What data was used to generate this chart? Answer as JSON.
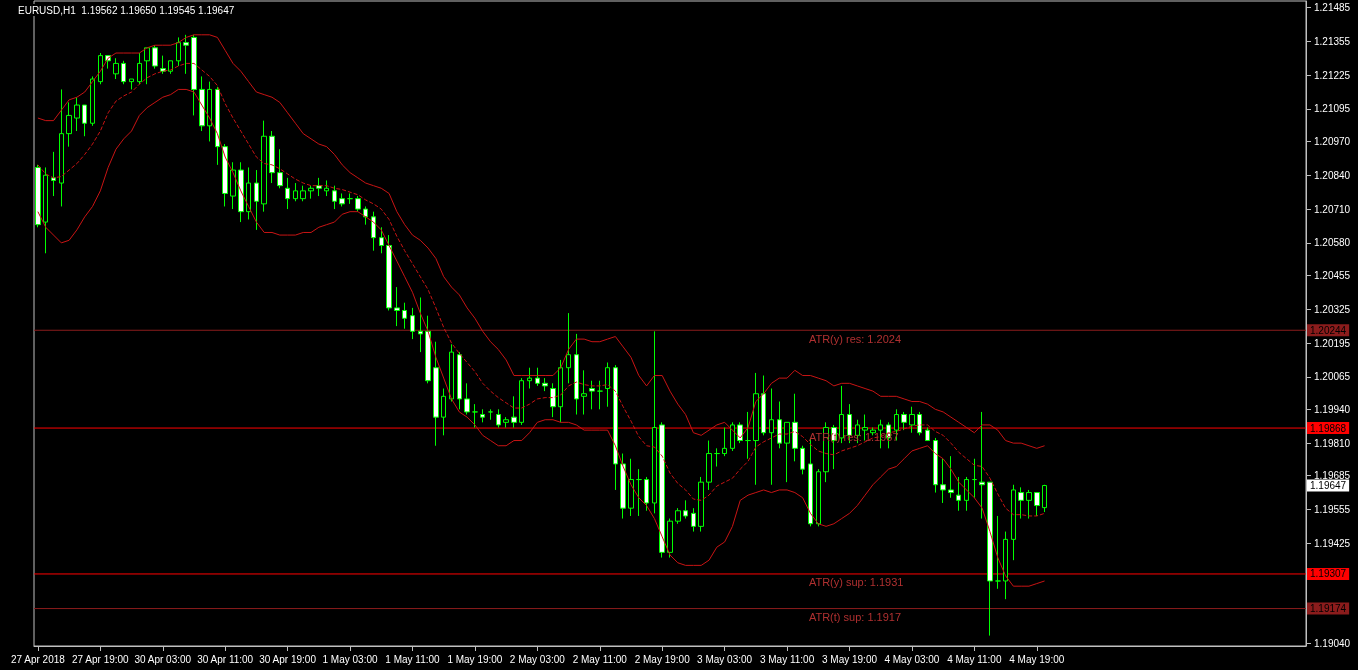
{
  "chart_data": {
    "type": "candlestick",
    "title": "EURUSD,H1  1.19562 1.19650 1.19545 1.19647",
    "color": "#00ff00",
    "categories": [
      "27 Apr 2018",
      null,
      null,
      null,
      null,
      null,
      null,
      null,
      "27 Apr 19:00",
      null,
      null,
      null,
      null,
      null,
      null,
      null,
      "30 Apr 03:00",
      null,
      null,
      null,
      null,
      null,
      null,
      null,
      "30 Apr 11:00",
      null,
      null,
      null,
      null,
      null,
      null,
      null,
      "30 Apr 19:00",
      null,
      null,
      null,
      null,
      null,
      null,
      null,
      "1 May 03:00",
      null,
      null,
      null,
      null,
      null,
      null,
      null,
      "1 May 11:00",
      null,
      null,
      null,
      null,
      null,
      null,
      null,
      "1 May 19:00",
      null,
      null,
      null,
      null,
      null,
      null,
      null,
      "2 May 03:00",
      null,
      null,
      null,
      null,
      null,
      null,
      null,
      "2 May 11:00",
      null,
      null,
      null,
      null,
      null,
      null,
      null,
      "2 May 19:00",
      null,
      null,
      null,
      null,
      null,
      null,
      null,
      "3 May 03:00",
      null,
      null,
      null,
      null,
      null,
      null,
      null,
      "3 May 11:00",
      null,
      null,
      null,
      null,
      null,
      null,
      null,
      "3 May 19:00",
      null,
      null,
      null,
      null,
      null,
      null,
      null,
      "4 May 03:00",
      null,
      null,
      null,
      null,
      null,
      null,
      null,
      "4 May 11:00",
      null,
      null,
      null,
      null,
      null,
      null,
      null,
      "4 May 19:00",
      null
    ],
    "ohlc": [
      [
        1.2087,
        1.2088,
        1.2064,
        1.2065
      ],
      [
        1.2066,
        1.2087,
        1.2054,
        1.2084
      ],
      [
        1.2083,
        1.2093,
        1.2076,
        1.2082
      ],
      [
        1.2081,
        1.2117,
        1.2072,
        1.21
      ],
      [
        1.21,
        1.2112,
        1.2095,
        1.2107
      ],
      [
        1.2106,
        1.2114,
        1.2101,
        1.2111
      ],
      [
        1.2111,
        1.2111,
        1.2099,
        1.2104
      ],
      [
        1.2104,
        1.2122,
        1.2103,
        1.2121
      ],
      [
        1.212,
        1.2131,
        1.2119,
        1.213
      ],
      [
        1.213,
        1.213,
        1.2125,
        1.2128
      ],
      [
        1.2123,
        1.2129,
        1.2121,
        1.2127
      ],
      [
        1.2127,
        1.2128,
        1.2119,
        1.212
      ],
      [
        1.212,
        1.2121,
        1.2117,
        1.2121
      ],
      [
        1.212,
        1.2131,
        1.2119,
        1.2127
      ],
      [
        1.2128,
        1.2133,
        1.2119,
        1.2133
      ],
      [
        1.2133,
        1.2134,
        1.2125,
        1.2126
      ],
      [
        1.2125,
        1.213,
        1.2123,
        1.2124
      ],
      [
        1.2124,
        1.2128,
        1.2123,
        1.2128
      ],
      [
        1.2128,
        1.2137,
        1.2126,
        1.2135
      ],
      [
        1.2135,
        1.2138,
        1.2123,
        1.2134
      ],
      [
        1.2137,
        1.2138,
        1.2107,
        1.2117
      ],
      [
        1.2117,
        1.2122,
        1.2101,
        1.2103
      ],
      [
        1.2103,
        1.212,
        1.2097,
        1.2117
      ],
      [
        1.2117,
        1.2118,
        1.2088,
        1.2095
      ],
      [
        1.2095,
        1.2096,
        1.2072,
        1.2077
      ],
      [
        1.2076,
        1.2089,
        1.2071,
        1.2086
      ],
      [
        1.2086,
        1.2089,
        1.2066,
        1.207
      ],
      [
        1.207,
        1.2087,
        1.2067,
        1.2081
      ],
      [
        1.2081,
        1.2086,
        1.2063,
        1.2074
      ],
      [
        1.2073,
        1.2105,
        1.207,
        1.2099
      ],
      [
        1.2099,
        1.2101,
        1.2081,
        1.2085
      ],
      [
        1.2085,
        1.2094,
        1.2079,
        1.208
      ],
      [
        1.2079,
        1.2083,
        1.2071,
        1.2075
      ],
      [
        1.2075,
        1.2081,
        1.2074,
        1.2078
      ],
      [
        1.2075,
        1.208,
        1.2074,
        1.2078
      ],
      [
        1.2078,
        1.208,
        1.2075,
        1.2079
      ],
      [
        1.208,
        1.2083,
        1.2076,
        1.2079
      ],
      [
        1.2078,
        1.2082,
        1.2076,
        1.2079
      ],
      [
        1.2078,
        1.208,
        1.2071,
        1.2074
      ],
      [
        1.2075,
        1.2077,
        1.2072,
        1.2073
      ],
      [
        1.2075,
        1.2077,
        1.2073,
        1.2075
      ],
      [
        1.2075,
        1.2076,
        1.207,
        1.2071
      ],
      [
        1.2071,
        1.2072,
        1.2065,
        1.2068
      ],
      [
        1.2068,
        1.207,
        1.2055,
        1.206
      ],
      [
        1.206,
        1.2064,
        1.2054,
        1.2057
      ],
      [
        1.2057,
        1.2061,
        1.2032,
        1.2033
      ],
      [
        1.2033,
        1.2041,
        1.2026,
        1.2032
      ],
      [
        1.2032,
        1.2035,
        1.2025,
        1.2029
      ],
      [
        1.203,
        1.2033,
        1.2021,
        1.2024
      ],
      [
        1.2024,
        1.2037,
        1.2016,
        1.2023
      ],
      [
        1.2024,
        1.203,
        1.2004,
        1.2005
      ],
      [
        1.201,
        1.202,
        1.198,
        1.1991
      ],
      [
        1.1991,
        1.2002,
        1.1984,
        1.1999
      ],
      [
        1.1998,
        1.2019,
        1.1997,
        1.2016
      ],
      [
        1.2015,
        1.2016,
        1.1994,
        1.1998
      ],
      [
        1.1998,
        1.2004,
        1.1992,
        1.1993
      ],
      [
        1.1993,
        1.1996,
        1.1987,
        1.1993
      ],
      [
        1.1992,
        1.1994,
        1.1989,
        1.1991
      ],
      [
        1.1993,
        1.1994,
        1.199,
        1.1993
      ],
      [
        1.1992,
        1.1994,
        1.1987,
        1.1988
      ],
      [
        1.1989,
        1.1991,
        1.1987,
        1.199
      ],
      [
        1.1991,
        1.1999,
        1.1987,
        1.1989
      ],
      [
        1.1989,
        1.2006,
        1.1988,
        1.2005
      ],
      [
        1.2005,
        1.201,
        1.2002,
        1.2006
      ],
      [
        1.2006,
        1.201,
        1.2003,
        1.2004
      ],
      [
        1.2004,
        1.2006,
        1.2001,
        1.2003
      ],
      [
        1.2002,
        1.2004,
        1.1991,
        1.1995
      ],
      [
        1.1995,
        1.2013,
        1.1989,
        1.201
      ],
      [
        1.201,
        1.2031,
        1.2004,
        1.2015
      ],
      [
        1.2015,
        1.2023,
        1.1992,
        1.1998
      ],
      [
        1.1999,
        1.2009,
        1.1992,
        1.2
      ],
      [
        1.2002,
        1.2005,
        1.1994,
        1.2001
      ],
      [
        1.2001,
        1.2005,
        1.1994,
        1.2001
      ],
      [
        1.2002,
        1.2012,
        1.1995,
        1.201
      ],
      [
        1.201,
        1.2011,
        1.1963,
        1.1973
      ],
      [
        1.1973,
        1.1977,
        1.1952,
        1.1956
      ],
      [
        1.1956,
        1.1975,
        1.1953,
        1.1967
      ],
      [
        1.1967,
        1.1971,
        1.1953,
        1.1967
      ],
      [
        1.1967,
        1.1968,
        1.1955,
        1.1958
      ],
      [
        1.1958,
        1.2024,
        1.1954,
        1.1987
      ],
      [
        1.1988,
        1.1989,
        1.1937,
        1.1939
      ],
      [
        1.1939,
        1.1952,
        1.1937,
        1.1951
      ],
      [
        1.1951,
        1.1956,
        1.195,
        1.1955
      ],
      [
        1.1955,
        1.1959,
        1.1952,
        1.1953
      ],
      [
        1.1954,
        1.1956,
        1.1947,
        1.1949
      ],
      [
        1.1949,
        1.1968,
        1.1947,
        1.1966
      ],
      [
        1.1966,
        1.1982,
        1.1963,
        1.1977
      ],
      [
        1.1977,
        1.1979,
        1.1972,
        1.1977
      ],
      [
        1.1977,
        1.1987,
        1.1976,
        1.1979
      ],
      [
        1.1979,
        1.1989,
        1.1978,
        1.1988
      ],
      [
        1.1988,
        1.1989,
        1.1981,
        1.1982
      ],
      [
        1.1982,
        1.1993,
        1.1975,
        1.1982
      ],
      [
        1.1982,
        1.2008,
        1.1965,
        1.2
      ],
      [
        1.2,
        1.2007,
        1.1984,
        1.1985
      ],
      [
        1.1985,
        1.2002,
        1.1965,
        1.199
      ],
      [
        1.199,
        1.1997,
        1.1979,
        1.1981
      ],
      [
        1.1981,
        1.1989,
        1.1966,
        1.1989
      ],
      [
        1.1989,
        1.2,
        1.1974,
        1.1979
      ],
      [
        1.1979,
        1.198,
        1.1969,
        1.1971
      ],
      [
        1.1973,
        1.1983,
        1.1949,
        1.195
      ],
      [
        1.195,
        1.1971,
        1.1949,
        1.197
      ],
      [
        1.197,
        1.1989,
        1.1966,
        1.1987
      ],
      [
        1.1987,
        1.1988,
        1.1971,
        1.1982
      ],
      [
        1.1983,
        1.2003,
        1.1981,
        1.1992
      ],
      [
        1.1992,
        1.1996,
        1.1981,
        1.1984
      ],
      [
        1.1984,
        1.199,
        1.1981,
        1.1988
      ],
      [
        1.1986,
        1.1992,
        1.1982,
        1.1987
      ],
      [
        1.1985,
        1.1987,
        1.1984,
        1.1986
      ],
      [
        1.1986,
        1.199,
        1.1979,
        1.1988
      ],
      [
        1.1988,
        1.1989,
        1.1979,
        1.1983
      ],
      [
        1.1986,
        1.1994,
        1.1982,
        1.1992
      ],
      [
        1.1992,
        1.1993,
        1.1986,
        1.1989
      ],
      [
        1.1988,
        1.1995,
        1.1985,
        1.1992
      ],
      [
        1.1992,
        1.1993,
        1.1984,
        1.1985
      ],
      [
        1.1986,
        1.1987,
        1.1982,
        1.1982
      ],
      [
        1.1982,
        1.1983,
        1.1962,
        1.1965
      ],
      [
        1.1965,
        1.1975,
        1.1958,
        1.1963
      ],
      [
        1.1963,
        1.1976,
        1.196,
        1.1962
      ],
      [
        1.1961,
        1.1968,
        1.1955,
        1.1959
      ],
      [
        1.1959,
        1.1968,
        1.1955,
        1.1967
      ],
      [
        1.1967,
        1.1975,
        1.196,
        1.1967
      ],
      [
        1.1966,
        1.1993,
        1.1952,
        1.1965
      ],
      [
        1.1966,
        1.1966,
        1.1907,
        1.1928
      ],
      [
        1.1928,
        1.1953,
        1.1925,
        1.1928
      ],
      [
        1.1928,
        1.1947,
        1.1921,
        1.1944
      ],
      [
        1.1944,
        1.1965,
        1.1936,
        1.1963
      ],
      [
        1.1962,
        1.1964,
        1.1952,
        1.1959
      ],
      [
        1.1959,
        1.1963,
        1.1952,
        1.1962
      ],
      [
        1.1962,
        1.1962,
        1.1953,
        1.1957
      ],
      [
        1.19562,
        1.1965,
        1.19545,
        1.19647
      ]
    ],
    "series": [
      {
        "type": "line",
        "color": "#c81414",
        "line_style": "solid",
        "values": [
          1.2106,
          1.2105,
          1.2105,
          1.2109,
          1.2113,
          1.2114,
          1.2116,
          1.212,
          1.2124,
          1.2129,
          1.2131,
          1.2131,
          1.2131,
          1.2131,
          1.2133,
          1.2134,
          1.2134,
          1.2134,
          1.2135,
          1.2137,
          1.2138,
          1.2138,
          1.2138,
          1.2137,
          1.2132,
          1.2127,
          1.2124,
          1.212,
          1.2116,
          1.2115,
          1.2114,
          1.2112,
          1.2108,
          1.2104,
          1.21,
          1.2098,
          1.2096,
          1.2095,
          1.2092,
          1.2088,
          1.2085,
          1.2083,
          1.2081,
          1.208,
          1.2079,
          1.2077,
          1.207,
          1.2065,
          1.2061,
          1.2059,
          1.2056,
          1.2052,
          1.2045,
          1.2041,
          1.2038,
          1.2033,
          1.2029,
          1.2024,
          1.202,
          1.2017,
          1.2013,
          1.2007,
          1.2007,
          1.2007,
          1.2007,
          1.2007,
          1.2007,
          1.201,
          1.2017,
          1.2021,
          1.2021,
          1.202,
          1.202,
          1.2021,
          1.2022,
          1.2018,
          1.2014,
          1.2007,
          1.2003,
          1.2007,
          1.2007,
          1.2001,
          1.1996,
          1.1992,
          1.1985,
          1.1984,
          1.1986,
          1.1988,
          1.1989,
          1.1986,
          1.1983,
          1.1987,
          1.1997,
          1.2,
          1.2004,
          1.2006,
          1.2006,
          1.2009,
          1.2007,
          1.2007,
          1.2006,
          1.2005,
          1.2003,
          1.2004,
          1.2004,
          1.2003,
          1.2002,
          1.2001,
          1.1999,
          1.1999,
          1.1999,
          1.1998,
          1.1997,
          1.1997,
          1.1996,
          1.1994,
          1.1993,
          1.1991,
          1.1989,
          1.1987,
          1.1985,
          1.1988,
          1.1988,
          1.1986,
          1.1982,
          1.1981,
          1.1981,
          1.198,
          1.1979,
          1.198
        ]
      },
      {
        "type": "line",
        "color": "#c81414",
        "line_style": "dashed",
        "values": [
          1.2088,
          1.20845,
          1.2083,
          1.20835,
          1.2086,
          1.20885,
          1.2092,
          1.2096,
          1.2101,
          1.2108,
          1.21125,
          1.21145,
          1.2116,
          1.2119,
          1.21215,
          1.2123,
          1.2124,
          1.21245,
          1.2126,
          1.2127,
          1.2127,
          1.21245,
          1.2122,
          1.21185,
          1.21115,
          1.2106,
          1.2101,
          1.2096,
          1.2091,
          1.20885,
          1.2088,
          1.20865,
          1.20845,
          1.20825,
          1.2081,
          1.208,
          1.208,
          1.208,
          1.2079,
          1.20785,
          1.20775,
          1.20765,
          1.20745,
          1.2073,
          1.2071,
          1.2067,
          1.20605,
          1.2055,
          1.205,
          1.2045,
          1.204,
          1.2033,
          1.20255,
          1.20195,
          1.20155,
          1.2012,
          1.20085,
          1.2004,
          1.2001,
          1.19985,
          1.19965,
          1.19945,
          1.19945,
          1.1996,
          1.1998,
          1.19985,
          1.19985,
          1.19995,
          1.2003,
          1.20045,
          1.20035,
          1.2003,
          1.2003,
          1.20035,
          1.2001,
          1.1995,
          1.19895,
          1.19835,
          1.198,
          1.19795,
          1.1976,
          1.19695,
          1.19655,
          1.1963,
          1.19595,
          1.1959,
          1.1961,
          1.19645,
          1.1966,
          1.19675,
          1.1971,
          1.1974,
          1.19795,
          1.19815,
          1.1983,
          1.19845,
          1.19845,
          1.19855,
          1.19835,
          1.19805,
          1.1978,
          1.1977,
          1.19765,
          1.1978,
          1.1979,
          1.198,
          1.19815,
          1.1983,
          1.19835,
          1.1985,
          1.19855,
          1.19865,
          1.19875,
          1.1988,
          1.1988,
          1.19855,
          1.1984,
          1.1981,
          1.19775,
          1.1975,
          1.19725,
          1.1972,
          1.19675,
          1.19615,
          1.1956,
          1.19535,
          1.19535,
          1.1953,
          1.1953,
          1.1954
        ]
      },
      {
        "type": "line",
        "color": "#c81414",
        "line_style": "solid",
        "values": [
          1.207,
          1.2064,
          1.2061,
          1.2058,
          1.2059,
          1.2063,
          1.2068,
          1.2072,
          1.2078,
          1.2087,
          1.2094,
          1.2098,
          1.2101,
          1.2107,
          1.211,
          1.2112,
          1.2114,
          1.2115,
          1.2117,
          1.2117,
          1.2116,
          1.2111,
          1.2106,
          1.21,
          1.2091,
          1.2085,
          1.2078,
          1.2072,
          1.2066,
          1.2062,
          1.2062,
          1.2061,
          1.2061,
          1.2061,
          1.2062,
          1.2062,
          1.2064,
          1.2065,
          1.2066,
          1.2069,
          1.207,
          1.207,
          1.2068,
          1.2066,
          1.2063,
          1.2057,
          1.2051,
          1.2045,
          1.2039,
          1.2031,
          1.2024,
          1.2014,
          1.2006,
          1.1998,
          1.1993,
          1.1991,
          1.1988,
          1.1984,
          1.1982,
          1.198,
          1.198,
          1.1982,
          1.1982,
          1.1985,
          1.1989,
          1.199,
          1.199,
          1.1989,
          1.1989,
          1.1988,
          1.1986,
          1.1986,
          1.1986,
          1.1986,
          1.198,
          1.1972,
          1.1965,
          1.196,
          1.1957,
          1.1952,
          1.1945,
          1.1938,
          1.1935,
          1.1934,
          1.1934,
          1.1934,
          1.1936,
          1.1941,
          1.1943,
          1.1949,
          1.1959,
          1.1961,
          1.1962,
          1.1963,
          1.1962,
          1.1963,
          1.1963,
          1.1962,
          1.196,
          1.1954,
          1.195,
          1.1949,
          1.195,
          1.1952,
          1.1954,
          1.1957,
          1.1961,
          1.1965,
          1.1968,
          1.1971,
          1.1972,
          1.1975,
          1.1978,
          1.1979,
          1.198,
          1.1977,
          1.1975,
          1.1971,
          1.1966,
          1.1963,
          1.196,
          1.1956,
          1.1947,
          1.1937,
          1.193,
          1.1926,
          1.1926,
          1.1926,
          1.1927,
          1.1928
        ]
      }
    ],
    "ylim": [
      1.1903,
      1.2151
    ],
    "yticks": [
      1.21485,
      1.21355,
      1.21225,
      1.21095,
      {
        "value": 1.2097,
        "label": "1.20970"
      },
      {
        "value": 1.2084,
        "label": "1.20840"
      },
      {
        "value": 1.2071,
        "label": "1.20710"
      },
      {
        "value": 1.2058,
        "label": "1.20580"
      },
      1.20455,
      1.20325,
      1.20195,
      1.20065,
      {
        "value": 1.1994,
        "label": "1.19940"
      },
      {
        "value": 1.1981,
        "label": "1.19810"
      },
      1.19685,
      1.19555,
      1.19425,
      {
        "value": 1.1904,
        "label": "1.19040"
      }
    ],
    "ref_lines": [
      {
        "axis": "y",
        "value": 1.20244,
        "label": "ATR(y) res: 1.2024",
        "color": "#8b1c1c"
      },
      {
        "axis": "y",
        "value": 1.19868,
        "label": "ATR(t) res: 1.1987",
        "color": "#ff0000"
      },
      {
        "axis": "y",
        "value": 1.19307,
        "label": "ATR(y) sup: 1.1931",
        "color": "#ff0000"
      },
      {
        "axis": "y",
        "value": 1.19174,
        "label": "ATR(t) sup: 1.1917",
        "color": "#8b1c1c"
      }
    ],
    "annotations": [
      "1.20244",
      "1.19868",
      "1.19307",
      "1.19174",
      "1.19647"
    ]
  }
}
